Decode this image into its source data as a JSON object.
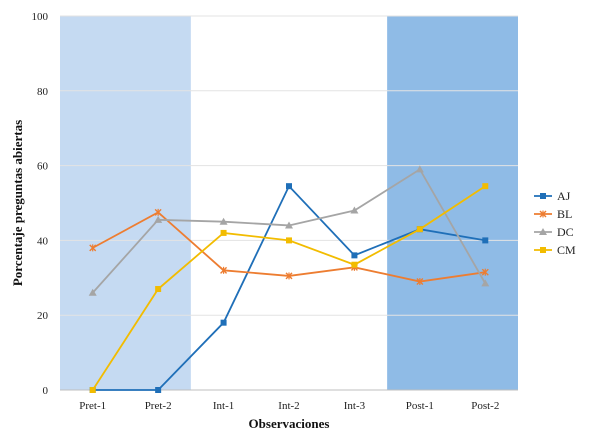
{
  "chart_data": {
    "type": "line",
    "title": "",
    "xlabel": "Observaciones",
    "ylabel": "Porcentaje preguntas abiertas",
    "categories": [
      "Pret-1",
      "Pret-2",
      "Int-1",
      "Int-2",
      "Int-3",
      "Post-1",
      "Post-2"
    ],
    "ylim": [
      0,
      100
    ],
    "yticks": [
      0,
      20,
      40,
      60,
      80,
      100
    ],
    "grid": true,
    "legend": "right",
    "highlighted_regions": [
      {
        "from": "Pret-1",
        "to": "Pret-2",
        "color": "#c5daf2"
      },
      {
        "from": "Post-1",
        "to": "Post-2",
        "color": "#8fbbe6"
      }
    ],
    "series": [
      {
        "name": "AJ",
        "color": "#1f6fb8",
        "marker": "square",
        "values": [
          0,
          0,
          18,
          54.5,
          36,
          43,
          40
        ]
      },
      {
        "name": "BL",
        "color": "#ed7d31",
        "marker": "x",
        "values": [
          38,
          47.5,
          32,
          30.5,
          32.8,
          29,
          31.5
        ]
      },
      {
        "name": "DC",
        "color": "#a5a5a5",
        "marker": "triangle",
        "values": [
          26,
          45.5,
          45,
          44,
          48,
          59,
          28.5
        ]
      },
      {
        "name": "CM",
        "color": "#f2bc00",
        "marker": "circle",
        "values": [
          0,
          27,
          42,
          40,
          33.5,
          43,
          54.5
        ]
      }
    ]
  }
}
